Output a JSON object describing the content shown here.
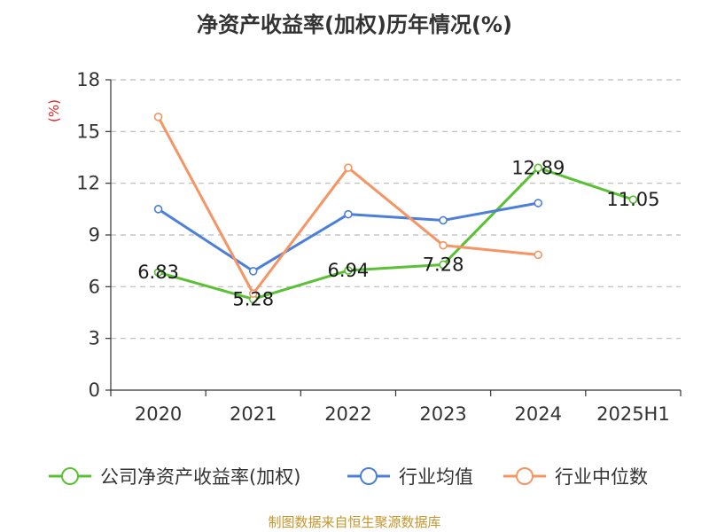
{
  "chart_data": {
    "type": "line",
    "title": "净资产收益率(加权)历年情况(%)",
    "ylabel": "(%)",
    "ylim": [
      0,
      18
    ],
    "yticks": [
      0,
      3,
      6,
      9,
      12,
      15,
      18
    ],
    "categories": [
      "2020",
      "2021",
      "2022",
      "2023",
      "2024",
      "2025H1"
    ],
    "grid": true,
    "legend_position": "bottom",
    "series": [
      {
        "name": "公司净资产收益率(加权)",
        "color": "#5ac034",
        "values": [
          6.83,
          5.28,
          6.94,
          7.28,
          12.89,
          11.05
        ],
        "labels": [
          "6.83",
          "5.28",
          "6.94",
          "7.28",
          "12.89",
          "11.05"
        ]
      },
      {
        "name": "行业均值",
        "color": "#4c7fd9",
        "values": [
          10.5,
          6.9,
          10.2,
          9.85,
          10.85,
          null
        ]
      },
      {
        "name": "行业中位数",
        "color": "#f69463",
        "values": [
          15.85,
          5.6,
          12.9,
          8.4,
          7.85,
          null
        ]
      }
    ],
    "source": "制图数据来自恒生聚源数据库",
    "colors": {
      "axis": "#333333",
      "grid": "#bbbbbb",
      "unit": "#e02020",
      "source": "#c8952b"
    }
  }
}
